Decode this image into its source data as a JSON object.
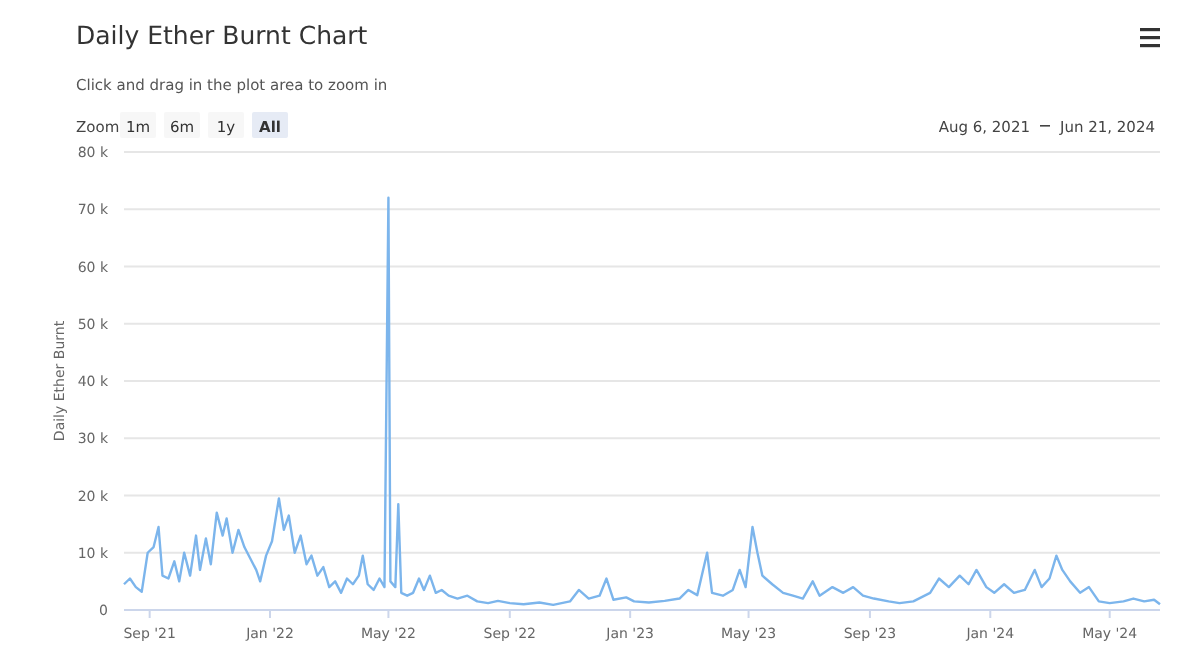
{
  "chart_data": {
    "type": "line",
    "title": "Daily Ether Burnt Chart",
    "subtitle": "Click and drag in the plot area to zoom in",
    "ylabel": "Daily Ether Burnt",
    "annotations": [
      "Zoom",
      "1m",
      "6m",
      "1y",
      "All",
      "Aug 6, 2021",
      "Jun 21, 2024"
    ],
    "x": [
      "2021-08-06",
      "2021-08-12",
      "2021-08-18",
      "2021-08-24",
      "2021-08-30",
      "2021-09-05",
      "2021-09-10",
      "2021-09-14",
      "2021-09-20",
      "2021-09-26",
      "2021-10-01",
      "2021-10-06",
      "2021-10-12",
      "2021-10-18",
      "2021-10-22",
      "2021-10-28",
      "2021-11-02",
      "2021-11-08",
      "2021-11-14",
      "2021-11-18",
      "2021-11-24",
      "2021-11-30",
      "2021-12-06",
      "2021-12-12",
      "2021-12-18",
      "2021-12-22",
      "2021-12-28",
      "2022-01-03",
      "2022-01-10",
      "2022-01-15",
      "2022-01-20",
      "2022-01-26",
      "2022-02-01",
      "2022-02-07",
      "2022-02-12",
      "2022-02-18",
      "2022-02-24",
      "2022-03-02",
      "2022-03-08",
      "2022-03-14",
      "2022-03-20",
      "2022-03-26",
      "2022-04-01",
      "2022-04-05",
      "2022-04-10",
      "2022-04-16",
      "2022-04-22",
      "2022-04-27",
      "2022-05-01",
      "2022-05-03",
      "2022-05-08",
      "2022-05-11",
      "2022-05-14",
      "2022-05-20",
      "2022-05-26",
      "2022-06-01",
      "2022-06-06",
      "2022-06-12",
      "2022-06-18",
      "2022-06-24",
      "2022-07-01",
      "2022-07-10",
      "2022-07-20",
      "2022-07-30",
      "2022-08-10",
      "2022-08-20",
      "2022-09-01",
      "2022-09-15",
      "2022-10-01",
      "2022-10-15",
      "2022-11-01",
      "2022-11-10",
      "2022-11-20",
      "2022-12-01",
      "2022-12-08",
      "2022-12-15",
      "2022-12-28",
      "2023-01-05",
      "2023-01-20",
      "2023-02-05",
      "2023-02-20",
      "2023-03-01",
      "2023-03-10",
      "2023-03-20",
      "2023-03-25",
      "2023-04-05",
      "2023-04-15",
      "2023-04-22",
      "2023-04-28",
      "2023-05-05",
      "2023-05-10",
      "2023-05-15",
      "2023-05-25",
      "2023-06-05",
      "2023-06-15",
      "2023-06-25",
      "2023-07-05",
      "2023-07-12",
      "2023-07-25",
      "2023-08-05",
      "2023-08-15",
      "2023-08-25",
      "2023-09-05",
      "2023-09-20",
      "2023-10-01",
      "2023-10-15",
      "2023-11-01",
      "2023-11-10",
      "2023-11-20",
      "2023-12-01",
      "2023-12-10",
      "2023-12-18",
      "2023-12-28",
      "2024-01-05",
      "2024-01-15",
      "2024-01-25",
      "2024-02-05",
      "2024-02-15",
      "2024-02-22",
      "2024-03-01",
      "2024-03-08",
      "2024-03-14",
      "2024-03-22",
      "2024-04-01",
      "2024-04-10",
      "2024-04-20",
      "2024-05-01",
      "2024-05-15",
      "2024-05-25",
      "2024-06-05",
      "2024-06-15",
      "2024-06-21"
    ],
    "series": [
      {
        "color": "#7cb5ec",
        "values": [
          4500,
          5500,
          4000,
          3200,
          10000,
          11000,
          14500,
          6000,
          5500,
          8500,
          5000,
          10000,
          6000,
          13000,
          7000,
          12500,
          8000,
          17000,
          13000,
          16000,
          10000,
          14000,
          11000,
          9000,
          7000,
          5000,
          9500,
          12000,
          19500,
          14000,
          16500,
          10000,
          13000,
          8000,
          9500,
          6000,
          7500,
          4000,
          5000,
          3000,
          5500,
          4500,
          6000,
          9500,
          4500,
          3500,
          5500,
          4000,
          72000,
          5000,
          4000,
          18500,
          3000,
          2500,
          3000,
          5500,
          3500,
          6000,
          3000,
          3500,
          2500,
          2000,
          2500,
          1500,
          1200,
          1600,
          1200,
          1000,
          1300,
          900,
          1500,
          3500,
          2000,
          2500,
          5500,
          1800,
          2200,
          1500,
          1300,
          1600,
          2000,
          3500,
          2600,
          10000,
          3000,
          2500,
          3500,
          7000,
          4000,
          14500,
          10000,
          6000,
          4500,
          3000,
          2500,
          2000,
          5000,
          2500,
          4000,
          3000,
          4000,
          2500,
          2000,
          1500,
          1200,
          1500,
          3000,
          5500,
          4000,
          6000,
          4500,
          7000,
          4000,
          3000,
          4500,
          3000,
          3500,
          7000,
          4000,
          5500,
          9500,
          7000,
          5000,
          3000,
          4000,
          1500,
          1200,
          1500,
          2000,
          1500,
          1800,
          1000
        ]
      }
    ],
    "xlim": [
      "2021-08-06",
      "2024-06-21"
    ],
    "xticks": [
      {
        "value": "2021-09-01",
        "label": "Sep '21"
      },
      {
        "value": "2022-01-01",
        "label": "Jan '22"
      },
      {
        "value": "2022-05-01",
        "label": "May '22"
      },
      {
        "value": "2022-09-01",
        "label": "Sep '22"
      },
      {
        "value": "2023-01-01",
        "label": "Jan '23"
      },
      {
        "value": "2023-05-01",
        "label": "May '23"
      },
      {
        "value": "2023-09-01",
        "label": "Sep '23"
      },
      {
        "value": "2024-01-01",
        "label": "Jan '24"
      },
      {
        "value": "2024-05-01",
        "label": "May '24"
      }
    ],
    "ylim": [
      0,
      80000
    ],
    "yticks": [
      {
        "value": 0,
        "label": "0"
      },
      {
        "value": 10000,
        "label": "10 k"
      },
      {
        "value": 20000,
        "label": "20 k"
      },
      {
        "value": 30000,
        "label": "30 k"
      },
      {
        "value": 40000,
        "label": "40 k"
      },
      {
        "value": 50000,
        "label": "50 k"
      },
      {
        "value": 60000,
        "label": "60 k"
      },
      {
        "value": 70000,
        "label": "70 k"
      },
      {
        "value": 80000,
        "label": "80 k"
      }
    ],
    "grid": "y",
    "marker": "none",
    "line_style": "solid"
  }
}
